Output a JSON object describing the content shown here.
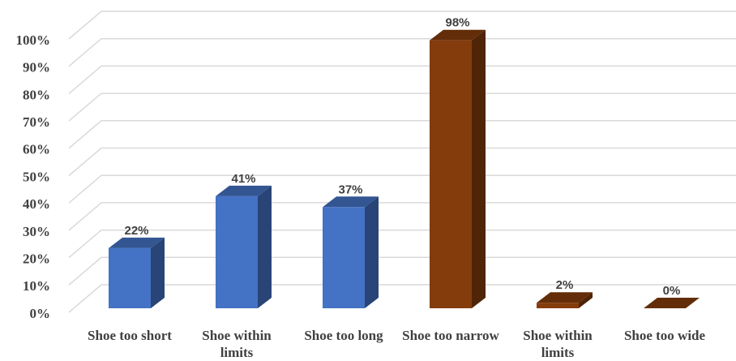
{
  "chart_data": {
    "type": "bar3d",
    "categories": [
      "Shoe too short",
      "Shoe within limits",
      "Shoe too long",
      "Shoe too narrow",
      "Shoe within limits",
      "Shoe too wide"
    ],
    "values": [
      22,
      41,
      37,
      98,
      2,
      0
    ],
    "value_labels": [
      "22%",
      "41%",
      "37%",
      "98%",
      "2%",
      "0%"
    ],
    "colors": [
      "#4472c4",
      "#4472c4",
      "#4472c4",
      "#843c0c",
      "#843c0c",
      "#843c0c"
    ],
    "ylim": [
      0,
      100
    ],
    "yticks": [
      {
        "value": 0,
        "label": "0%"
      },
      {
        "value": 10,
        "label": "10%"
      },
      {
        "value": 20,
        "label": "20%"
      },
      {
        "value": 30,
        "label": "30%"
      },
      {
        "value": 40,
        "label": "40%"
      },
      {
        "value": 50,
        "label": "50%"
      },
      {
        "value": 60,
        "label": "60%"
      },
      {
        "value": 70,
        "label": "70%"
      },
      {
        "value": 80,
        "label": "80%"
      },
      {
        "value": 90,
        "label": "90%"
      },
      {
        "value": 100,
        "label": "100%"
      }
    ],
    "grid": true
  }
}
